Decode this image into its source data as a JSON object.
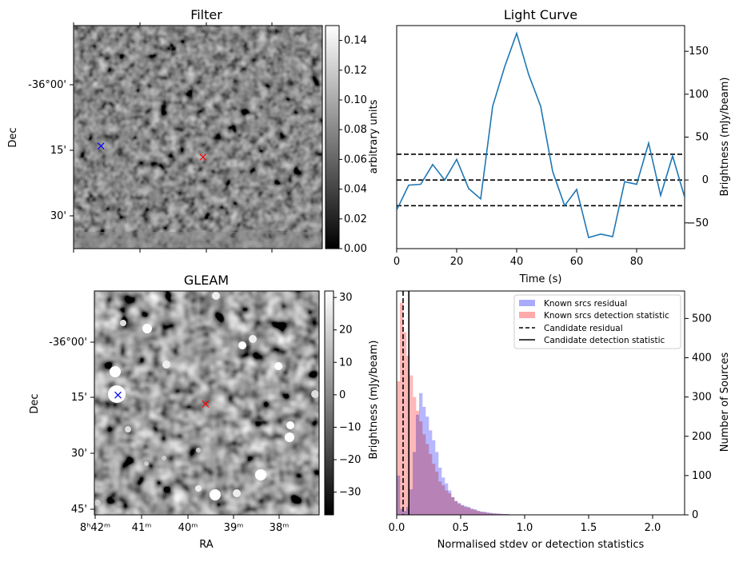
{
  "chart_data": [
    {
      "type": "heatmap",
      "title": "Filter",
      "xlabel": "",
      "ylabel": "Dec",
      "y_tick_labels": [
        "-36°00'",
        "15'",
        "30'"
      ],
      "colorbar": {
        "label": "arbitrary units",
        "range": [
          0,
          0.15
        ],
        "ticks": [
          0.0,
          0.02,
          0.04,
          0.06,
          0.08,
          0.1,
          0.12,
          0.14
        ],
        "tick_labels": [
          "0.00",
          "0.02",
          "0.04",
          "0.06",
          "0.08",
          "0.10",
          "0.12",
          "0.14"
        ]
      },
      "markers": [
        {
          "color": "#0000ff",
          "symbol": "x",
          "fx": 0.11,
          "fy": 0.54
        },
        {
          "color": "#ff0000",
          "symbol": "x",
          "fx": 0.52,
          "fy": 0.59
        }
      ]
    },
    {
      "type": "line",
      "title": "Light Curve",
      "xlabel": "Time (s)",
      "ylabel": "Brightness (mJy/beam)",
      "xlim": [
        0,
        96
      ],
      "ylim": [
        -80,
        180
      ],
      "x_ticks": [
        0,
        20,
        40,
        60,
        80
      ],
      "y_ticks": [
        -50,
        0,
        50,
        100,
        150
      ],
      "series": [
        {
          "color": "#1f77b4",
          "x": [
            0,
            4,
            8,
            12,
            16,
            20,
            24,
            28,
            32,
            36,
            40,
            44,
            48,
            52,
            56,
            60,
            64,
            68,
            72,
            76,
            80,
            84,
            88,
            92,
            96
          ],
          "y": [
            -35,
            -6,
            -5,
            18,
            0,
            24,
            -10,
            -22,
            86,
            132,
            171,
            123,
            86,
            10,
            -30,
            -11,
            -67,
            -63,
            -66,
            -2,
            -5,
            43,
            -18,
            28,
            -20
          ]
        }
      ],
      "hlines": [
        {
          "y": 30,
          "style": "dashed",
          "color": "#000000"
        },
        {
          "y": 0,
          "style": "dashed",
          "color": "#000000"
        },
        {
          "y": -30,
          "style": "dashed",
          "color": "#000000"
        }
      ]
    },
    {
      "type": "heatmap",
      "title": "GLEAM",
      "xlabel": "RA",
      "ylabel": "Dec",
      "x_tick_labels": [
        "8ʰ42ᵐ",
        "41ᵐ",
        "40ᵐ",
        "39ᵐ",
        "38ᵐ"
      ],
      "y_tick_labels": [
        "-36°00'",
        "15'",
        "30'",
        "45'"
      ],
      "colorbar": {
        "label": "Brightness (mJy/beam)",
        "range": [
          -37,
          32
        ],
        "ticks": [
          30,
          20,
          10,
          0,
          -10,
          -20,
          -30
        ],
        "tick_labels": [
          "30",
          "20",
          "10",
          "0",
          "−10",
          "−20",
          "−30"
        ]
      },
      "markers": [
        {
          "color": "#0000ff",
          "symbol": "x",
          "fx": 0.105,
          "fy": 0.465
        },
        {
          "color": "#ff0000",
          "symbol": "x",
          "fx": 0.495,
          "fy": 0.505
        }
      ]
    },
    {
      "type": "bar",
      "title": "",
      "xlabel": "Normalised stdev or detection statistics",
      "ylabel": "Number of Sources",
      "xlim": [
        0,
        2.25
      ],
      "ylim": [
        0,
        570
      ],
      "x_ticks": [
        0.0,
        0.5,
        1.0,
        1.5,
        2.0
      ],
      "x_tick_labels": [
        "0.0",
        "0.5",
        "1.0",
        "1.5",
        "2.0"
      ],
      "y_ticks": [
        0,
        100,
        200,
        300,
        400,
        500
      ],
      "bin_width": 0.025,
      "bins_start": 0.0,
      "series": [
        {
          "name": "Known srcs residual",
          "color": "#aaaaff",
          "values": [
            100,
            15,
            10,
            20,
            65,
            160,
            255,
            310,
            275,
            250,
            215,
            190,
            160,
            120,
            95,
            80,
            62,
            45,
            35,
            30,
            25,
            22,
            20,
            16,
            14,
            10,
            8,
            8,
            6,
            5,
            4,
            3,
            3,
            2,
            2,
            1,
            1,
            1,
            1,
            1,
            0,
            0,
            0,
            0,
            0,
            0,
            0,
            0,
            0,
            0,
            0,
            0,
            0,
            0,
            0,
            0,
            0,
            0,
            0,
            0,
            0,
            0,
            0,
            0,
            0,
            0,
            0,
            0,
            0,
            0,
            0,
            0,
            0,
            0,
            0,
            0,
            0,
            0,
            0,
            0,
            0,
            0,
            0,
            0,
            0,
            0,
            0,
            0,
            0,
            0
          ]
        },
        {
          "name": "Known srcs detection statistic",
          "color": "#ffaaaa",
          "values": [
            340,
            540,
            465,
            405,
            355,
            300,
            265,
            238,
            205,
            180,
            155,
            130,
            110,
            85,
            75,
            62,
            55,
            45,
            35,
            28,
            24,
            20,
            18,
            14,
            12,
            10,
            8,
            6,
            5,
            4,
            3,
            3,
            2,
            2,
            2,
            1,
            1,
            1,
            1,
            1,
            1,
            1,
            0,
            0,
            0,
            0,
            0,
            0,
            0,
            0,
            0,
            0,
            0,
            0,
            0,
            0,
            0,
            0,
            0,
            0,
            0,
            0,
            0,
            0,
            0,
            0,
            0,
            0,
            0,
            0,
            0,
            0,
            0,
            0,
            0,
            0,
            0,
            0,
            0,
            0,
            0,
            0,
            0,
            0,
            0,
            0,
            0,
            0,
            0,
            0
          ]
        }
      ],
      "vlines": [
        {
          "name": "Candidate residual",
          "x": 0.05,
          "style": "dashed",
          "color": "#000000"
        },
        {
          "name": "Candidate detection statistic",
          "x": 0.095,
          "style": "solid",
          "color": "#000000"
        }
      ],
      "legend": "top-right"
    }
  ]
}
